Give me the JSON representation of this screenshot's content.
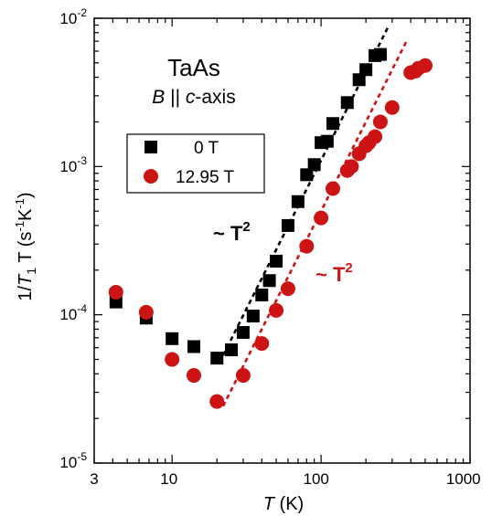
{
  "chart_data": {
    "type": "scatter",
    "title": "TaAs",
    "subtitle": {
      "B": "B",
      "parallel": " || ",
      "c": "c",
      "axis": "-axis"
    },
    "xlabel": {
      "sym": "T",
      "unit": " (K)"
    },
    "ylabel": {
      "pre": "1/",
      "T": "T",
      "sub1": "1",
      "T2": " T (s",
      "exp1": "-1",
      "mid": "K",
      "exp2": "-1",
      "post": ")"
    },
    "x_scale": "log",
    "y_scale": "log",
    "xlim": [
      3,
      1000
    ],
    "ylim": [
      1e-05,
      0.01
    ],
    "x_tick_labels": [
      "3",
      "10",
      "100",
      "1000"
    ],
    "y_tick_labels": [
      {
        "base": "10",
        "exp": "-5"
      },
      {
        "base": "10",
        "exp": "-4"
      },
      {
        "base": "10",
        "exp": "-3"
      },
      {
        "base": "10",
        "exp": "-2"
      }
    ],
    "legend_position": "upper-left",
    "series": [
      {
        "name": "0 T",
        "marker": "square",
        "color": "#000000",
        "x": [
          4.2,
          6.7,
          10,
          14,
          20,
          25,
          30,
          35,
          40,
          45,
          50,
          60,
          70,
          80,
          90,
          100,
          110,
          120,
          150,
          180,
          200,
          230,
          250
        ],
        "y": [
          0.000122,
          9.5e-05,
          6.9e-05,
          6.1e-05,
          5.1e-05,
          5.8e-05,
          7.6e-05,
          9.8e-05,
          0.000136,
          0.00017,
          0.00023,
          0.0004,
          0.00058,
          0.00088,
          0.00103,
          0.00145,
          0.00148,
          0.00195,
          0.0027,
          0.00385,
          0.0045,
          0.0056,
          0.0057
        ]
      },
      {
        "name": "12.95 T",
        "marker": "circle",
        "color": "#cc1414",
        "x": [
          4.2,
          6.7,
          10,
          14,
          20,
          30,
          40,
          50,
          60,
          80,
          100,
          120,
          150,
          160,
          180,
          200,
          210,
          230,
          250,
          300,
          400,
          430,
          450,
          500
        ],
        "y": [
          0.000142,
          0.000104,
          5e-05,
          3.9e-05,
          2.6e-05,
          3.9e-05,
          6.4e-05,
          0.000107,
          0.00015,
          0.00029,
          0.00045,
          0.00071,
          0.00094,
          0.001,
          0.00122,
          0.00138,
          0.00145,
          0.00159,
          0.002,
          0.0025,
          0.0043,
          0.0044,
          0.0046,
          0.0048
        ]
      }
    ],
    "fits": [
      {
        "label_base": "~ T",
        "label_exp": "2",
        "color": "#000000",
        "x_range": [
          22,
          280
        ],
        "coeff": 1.1e-07
      },
      {
        "label_base": "~ T",
        "label_exp": "2",
        "color": "#cc1414",
        "x_range": [
          22,
          380
        ],
        "coeff": 5e-08
      }
    ]
  }
}
